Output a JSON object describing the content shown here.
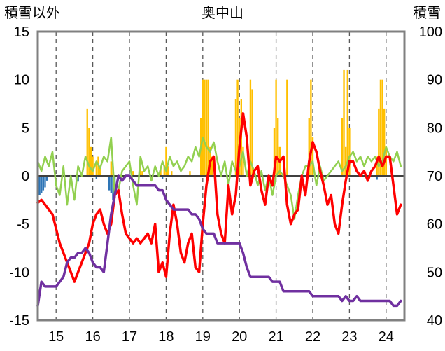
{
  "chart_data": {
    "type": "line",
    "title": "奥中山",
    "left_axis_label": "積雪以外",
    "right_axis_label": "積雪",
    "left_ylim": [
      -15,
      15
    ],
    "left_yticks": [
      "15",
      "10",
      "5",
      "0",
      "-5",
      "-10",
      "-15"
    ],
    "right_ylim": [
      40,
      100
    ],
    "right_yticks": [
      "100",
      "90",
      "80",
      "70",
      "60",
      "50",
      "40"
    ],
    "xlim": [
      14.5,
      24.5
    ],
    "xticks": [
      "15",
      "16",
      "17",
      "18",
      "19",
      "20",
      "21",
      "22",
      "23",
      "24"
    ],
    "grid": "vertical dashed at each day boundary",
    "zero_line": true,
    "series": [
      {
        "name": "",
        "axis": "left",
        "style": "bar",
        "color": "#FFC000",
        "x": [
          15.85,
          15.9,
          15.95,
          16.0,
          16.1,
          16.15,
          16.2,
          16.5,
          16.55,
          17.1,
          17.3,
          17.35,
          17.85,
          17.95,
          18.0,
          18.05,
          18.15,
          18.65,
          18.95,
          19.0,
          19.05,
          19.1,
          19.15,
          19.2,
          19.25,
          19.9,
          19.95,
          20.0,
          20.05,
          20.1,
          20.3,
          20.35,
          20.95,
          21.0,
          21.05,
          21.1,
          21.3,
          21.9,
          21.95,
          22.0,
          22.8,
          22.85,
          22.9,
          22.95,
          23.0,
          23.75,
          23.8,
          23.85,
          23.9,
          23.95,
          24.0
        ],
        "values": [
          7,
          5,
          3,
          2,
          1.5,
          2,
          1,
          1.5,
          1,
          0.5,
          1,
          0.5,
          0.8,
          1,
          3,
          1,
          0.5,
          0.5,
          6,
          10,
          10,
          10,
          10,
          3,
          2,
          8,
          10,
          6,
          8,
          3,
          10,
          9,
          5,
          10,
          6,
          3,
          10,
          6,
          10,
          4,
          6,
          11,
          3,
          11,
          5,
          2,
          7,
          10,
          10,
          7,
          3
        ]
      },
      {
        "name": "",
        "axis": "left",
        "style": "bar",
        "color": "#2E75B6",
        "x": [
          14.55,
          14.6,
          14.65,
          14.7,
          14.75,
          15.55,
          15.6,
          16.1,
          16.45,
          16.5,
          16.55,
          16.6,
          17.9,
          23.75
        ],
        "values": [
          -2,
          -1.8,
          -1.5,
          -1.2,
          -0.5,
          -0.4,
          -0.6,
          -0.3,
          -1.5,
          -1.8,
          -2.5,
          -1.2,
          -0.3,
          -0.4
        ]
      },
      {
        "name": "",
        "axis": "left",
        "style": "line",
        "color": "#92D050",
        "x": [
          14.5,
          14.6,
          14.7,
          14.8,
          14.9,
          15.0,
          15.1,
          15.2,
          15.3,
          15.4,
          15.5,
          15.6,
          15.7,
          15.8,
          15.9,
          16.0,
          16.1,
          16.2,
          16.3,
          16.4,
          16.5,
          16.6,
          16.7,
          16.8,
          16.9,
          17.0,
          17.1,
          17.2,
          17.3,
          17.4,
          17.5,
          17.6,
          17.7,
          17.8,
          17.9,
          18.0,
          18.1,
          18.2,
          18.3,
          18.4,
          18.5,
          18.6,
          18.7,
          18.8,
          18.9,
          19.0,
          19.1,
          19.2,
          19.3,
          19.4,
          19.5,
          19.6,
          19.7,
          19.8,
          19.9,
          20.0,
          20.1,
          20.2,
          20.3,
          20.4,
          20.5,
          20.6,
          20.7,
          20.8,
          20.9,
          21.0,
          21.1,
          21.2,
          21.3,
          21.4,
          21.5,
          21.6,
          21.7,
          21.8,
          21.9,
          22.0,
          22.1,
          22.2,
          22.3,
          22.4,
          22.5,
          22.6,
          22.7,
          22.8,
          22.9,
          23.0,
          23.1,
          23.2,
          23.3,
          23.4,
          23.5,
          23.6,
          23.7,
          23.8,
          23.9,
          24.0,
          24.1,
          24.2,
          24.3,
          24.4
        ],
        "values": [
          1.5,
          0.5,
          2,
          1,
          2.5,
          -1,
          -2,
          1,
          -3,
          0,
          -2.5,
          1,
          0,
          2,
          1,
          0.5,
          1.5,
          0.8,
          2,
          1.5,
          4,
          -2,
          -1.5,
          0.5,
          1,
          1.5,
          -1,
          -3,
          2,
          0.5,
          1,
          -0.5,
          1,
          0,
          1.5,
          0.5,
          2,
          1,
          1.5,
          0.5,
          1,
          2,
          1.5,
          3,
          2,
          4,
          3,
          2.5,
          3.5,
          1.5,
          0,
          1.5,
          -1,
          1.5,
          0.5,
          1,
          2.5,
          0,
          1.5,
          0.5,
          -1,
          0.5,
          -1.5,
          0,
          -2,
          0,
          0.5,
          0,
          -1,
          -2,
          -4.5,
          -2,
          0,
          1,
          1,
          1.5,
          -1,
          1,
          -0.5,
          0,
          0.5,
          1,
          1.5,
          0.5,
          1,
          2,
          2.5,
          1.5,
          2,
          1,
          2,
          1.5,
          2,
          1,
          1.5,
          3,
          2,
          1.5,
          2.5,
          1
        ]
      },
      {
        "name": "",
        "axis": "left",
        "style": "line",
        "color": "#FF0000",
        "x": [
          14.5,
          14.6,
          14.7,
          14.8,
          14.9,
          15.0,
          15.1,
          15.2,
          15.3,
          15.4,
          15.5,
          15.6,
          15.7,
          15.8,
          15.9,
          16.0,
          16.1,
          16.2,
          16.3,
          16.4,
          16.5,
          16.6,
          16.7,
          16.8,
          16.9,
          17.0,
          17.1,
          17.2,
          17.3,
          17.4,
          17.5,
          17.6,
          17.7,
          17.8,
          17.9,
          18.0,
          18.1,
          18.2,
          18.3,
          18.4,
          18.5,
          18.6,
          18.7,
          18.8,
          18.9,
          19.0,
          19.1,
          19.2,
          19.3,
          19.4,
          19.5,
          19.6,
          19.7,
          19.8,
          19.9,
          20.0,
          20.1,
          20.2,
          20.3,
          20.4,
          20.5,
          20.6,
          20.7,
          20.8,
          20.9,
          21.0,
          21.1,
          21.2,
          21.3,
          21.4,
          21.5,
          21.6,
          21.7,
          21.8,
          21.9,
          22.0,
          22.1,
          22.2,
          22.3,
          22.4,
          22.5,
          22.6,
          22.7,
          22.8,
          22.9,
          23.0,
          23.1,
          23.2,
          23.3,
          23.4,
          23.5,
          23.6,
          23.7,
          23.8,
          23.9,
          24.0,
          24.1,
          24.2,
          24.3,
          24.4
        ],
        "values": [
          -2.8,
          -2.5,
          -3,
          -3.5,
          -4,
          -5.5,
          -7,
          -8,
          -9,
          -10,
          -11,
          -10,
          -9,
          -8,
          -7,
          -5,
          -4,
          -3.5,
          -5,
          -6,
          -5,
          -2,
          -1.5,
          -4,
          -6,
          -6.5,
          -7,
          -6.5,
          -7,
          -6.5,
          -6,
          -7,
          -5,
          -10,
          -9,
          -10.5,
          -6,
          -3,
          -5,
          -8,
          -9,
          -7,
          -6,
          -9.5,
          -10,
          -5,
          -1,
          1.5,
          2,
          -4,
          -6,
          -7,
          -1,
          -4,
          -2,
          3,
          6.5,
          4,
          -1,
          0.5,
          1,
          -1.5,
          -3,
          0,
          -1,
          2,
          1.5,
          2,
          -3,
          -5,
          -4,
          -3.5,
          0,
          -2,
          1.5,
          3.5,
          2.5,
          0.5,
          -1,
          -3,
          -2,
          -5,
          -6,
          -3,
          -0.5,
          1.5,
          1.5,
          0.5,
          0,
          0.5,
          -0.5,
          0.5,
          1,
          2,
          1,
          2,
          2,
          -1,
          -4,
          -3
        ]
      },
      {
        "name": "",
        "axis": "right",
        "style": "line",
        "color": "#7030A0",
        "x": [
          14.5,
          14.6,
          14.7,
          14.8,
          14.9,
          15.0,
          15.1,
          15.2,
          15.3,
          15.4,
          15.5,
          15.6,
          15.7,
          15.8,
          15.9,
          16.0,
          16.1,
          16.2,
          16.3,
          16.4,
          16.5,
          16.6,
          16.7,
          16.8,
          16.9,
          17.0,
          17.1,
          17.2,
          17.3,
          17.4,
          17.5,
          17.6,
          17.7,
          17.8,
          17.9,
          18.0,
          18.1,
          18.2,
          18.3,
          18.4,
          18.5,
          18.6,
          18.7,
          18.8,
          18.9,
          19.0,
          19.1,
          19.2,
          19.3,
          19.4,
          19.5,
          19.6,
          19.7,
          19.8,
          19.9,
          20.0,
          20.1,
          20.2,
          20.3,
          20.4,
          20.5,
          20.6,
          20.7,
          20.8,
          20.9,
          21.0,
          21.1,
          21.2,
          21.3,
          21.4,
          21.5,
          21.6,
          21.7,
          21.8,
          21.9,
          22.0,
          22.1,
          22.2,
          22.3,
          22.4,
          22.5,
          22.6,
          22.7,
          22.8,
          22.9,
          23.0,
          23.1,
          23.2,
          23.3,
          23.4,
          23.5,
          23.6,
          23.7,
          23.8,
          23.9,
          24.0,
          24.1,
          24.2,
          24.3,
          24.4
        ],
        "values": [
          43,
          48,
          47,
          47,
          47,
          47,
          48,
          49,
          52,
          53,
          53,
          54,
          54,
          55,
          54,
          52,
          51,
          51,
          50,
          56,
          62,
          66,
          70,
          69,
          70,
          70,
          69,
          68,
          68,
          68,
          68,
          68,
          68,
          67,
          67,
          65,
          64,
          63,
          63,
          63,
          63,
          63,
          62,
          62,
          61,
          59,
          58,
          58,
          58,
          56,
          56,
          56,
          56,
          56,
          56,
          56,
          54,
          51,
          49,
          49,
          49,
          49,
          49,
          49,
          48,
          48,
          48,
          46,
          46,
          46,
          46,
          46,
          46,
          46,
          46,
          45,
          45,
          45,
          45,
          45,
          45,
          45,
          45,
          44,
          45,
          44,
          44,
          45,
          44,
          44,
          44,
          44,
          44,
          44,
          44,
          44,
          44,
          43,
          43,
          44
        ]
      }
    ]
  }
}
